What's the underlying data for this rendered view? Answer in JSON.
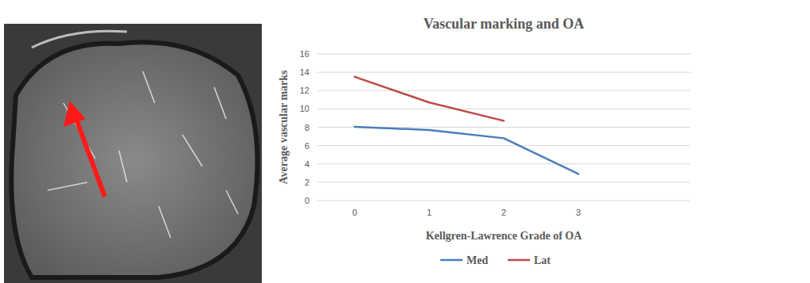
{
  "chart_data": {
    "type": "line",
    "title": "Vascular marking and OA",
    "x_label": "Kellgren-Lawrence Grade of OA",
    "y_label": "Average vascular marks",
    "categories": [
      "0",
      "1",
      "2",
      "3",
      null
    ],
    "series": [
      {
        "name": "Med",
        "color": "#4a7ebb",
        "values": [
          8.05,
          7.7,
          6.8,
          2.9,
          null
        ]
      },
      {
        "name": "Lat",
        "color": "#be4b48",
        "values": [
          13.5,
          10.7,
          8.7,
          null,
          null
        ]
      }
    ],
    "ylim": [
      0,
      16
    ],
    "yticks": [
      0,
      2,
      4,
      6,
      8,
      10,
      12,
      14,
      16
    ],
    "grid": true,
    "legend": "bottom"
  }
}
